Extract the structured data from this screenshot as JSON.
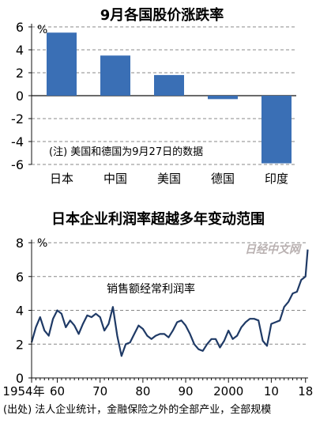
{
  "chart_data": [
    {
      "type": "bar",
      "title": "9月各国股价涨跌率",
      "unit_label": "%",
      "categories": [
        "日本",
        "中国",
        "美国",
        "德国",
        "印度"
      ],
      "values": [
        5.5,
        3.5,
        1.8,
        -0.3,
        -5.9
      ],
      "ylim": [
        -6,
        6
      ],
      "yticks": [
        6,
        4,
        2,
        0,
        -2,
        -4,
        -6
      ],
      "note": "(注) 美国和德国为9月27日的数据",
      "bar_color": "#3a6fb5"
    },
    {
      "type": "line",
      "title": "日本企业利润率超越多年变动范围",
      "unit_label": "%",
      "series_label": "销售额经常利润率",
      "ylim": [
        0,
        8
      ],
      "yticks": [
        8,
        6,
        4,
        2,
        0
      ],
      "xlim": [
        1954,
        2018.6
      ],
      "xticks": [
        {
          "value": 1954,
          "label": "1954年"
        },
        {
          "value": 1960,
          "label": "60"
        },
        {
          "value": 1970,
          "label": "70"
        },
        {
          "value": 1980,
          "label": "80"
        },
        {
          "value": 1990,
          "label": "90"
        },
        {
          "value": 2000,
          "label": "2000"
        },
        {
          "value": 2010,
          "label": "10"
        },
        {
          "value": 2018,
          "label": "18"
        }
      ],
      "line_color": "#1f3a66",
      "watermark": "日经中文网",
      "source": "(出处) 法人企业统计，金融保险之外的全部产业，全部规模",
      "x": [
        1954,
        1955,
        1956,
        1957,
        1958,
        1959,
        1960,
        1961,
        1962,
        1963,
        1964,
        1965,
        1966,
        1967,
        1968,
        1969,
        1970,
        1971,
        1972,
        1973,
        1974,
        1975,
        1976,
        1977,
        1978,
        1979,
        1980,
        1981,
        1982,
        1983,
        1984,
        1985,
        1986,
        1987,
        1988,
        1989,
        1990,
        1991,
        1992,
        1993,
        1994,
        1995,
        1996,
        1997,
        1998,
        1999,
        2000,
        2001,
        2002,
        2003,
        2004,
        2005,
        2006,
        2007,
        2008,
        2009,
        2010,
        2011,
        2012,
        2013,
        2014,
        2015,
        2016,
        2017,
        2018,
        2018.5
      ],
      "y": [
        2.1,
        3.0,
        3.6,
        2.8,
        2.5,
        3.5,
        4.0,
        3.8,
        3.0,
        3.4,
        3.1,
        2.6,
        3.2,
        3.7,
        3.6,
        3.8,
        3.6,
        2.8,
        3.2,
        4.2,
        2.5,
        1.3,
        2.0,
        2.1,
        2.6,
        3.1,
        2.9,
        2.5,
        2.3,
        2.5,
        2.6,
        2.6,
        2.4,
        2.8,
        3.3,
        3.4,
        3.1,
        2.6,
        2.0,
        1.7,
        1.6,
        2.0,
        2.3,
        2.3,
        1.8,
        2.2,
        2.8,
        2.3,
        2.5,
        3.0,
        3.3,
        3.5,
        3.5,
        3.4,
        2.2,
        1.9,
        3.2,
        3.3,
        3.4,
        4.2,
        4.5,
        5.0,
        5.1,
        5.8,
        6.0,
        7.6
      ]
    }
  ]
}
